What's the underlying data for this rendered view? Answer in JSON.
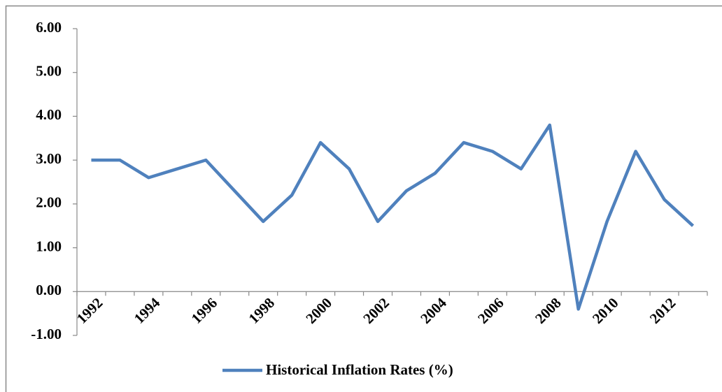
{
  "chart_data": {
    "type": "line",
    "categories": [
      "1992",
      null,
      "1994",
      null,
      "1996",
      null,
      "1998",
      null,
      "2000",
      null,
      "2002",
      null,
      "2004",
      null,
      "2006",
      null,
      "2008",
      null,
      "2010",
      null,
      "2012",
      null
    ],
    "series": [
      {
        "name": "Historical Inflation Rates (%)",
        "color": "#4f81bd",
        "values": [
          3.0,
          3.0,
          2.6,
          2.8,
          3.0,
          2.3,
          1.6,
          2.2,
          3.4,
          2.8,
          1.6,
          2.3,
          2.7,
          3.4,
          3.2,
          2.8,
          3.8,
          -0.4,
          1.6,
          3.2,
          2.1,
          1.5
        ]
      }
    ],
    "ylim": [
      -1,
      6
    ],
    "yticks": [
      {
        "value": -1,
        "label": "-1.00"
      },
      {
        "value": 0,
        "label": "0.00"
      },
      {
        "value": 1,
        "label": "1.00"
      },
      {
        "value": 2,
        "label": "2.00"
      },
      {
        "value": 3,
        "label": "3.00"
      },
      {
        "value": 4,
        "label": "4.00"
      },
      {
        "value": 5,
        "label": "5.00"
      },
      {
        "value": 6,
        "label": "6.00"
      }
    ],
    "legend": "bottom"
  }
}
